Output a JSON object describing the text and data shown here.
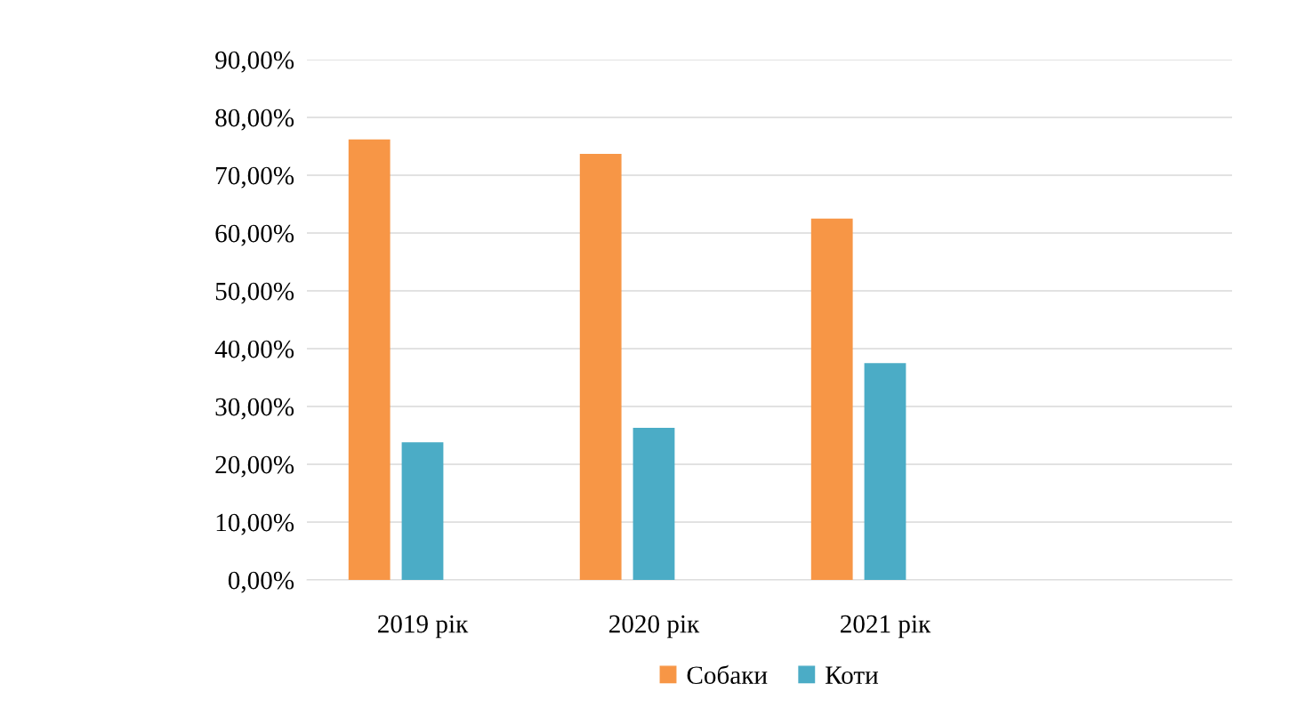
{
  "chart_data": {
    "type": "bar",
    "categories": [
      "2019 рік",
      "2020 рік",
      "2021 рік",
      null
    ],
    "series": [
      {
        "name": "Собаки",
        "color": "#f79646",
        "values": [
          76.2,
          73.7,
          62.5,
          null
        ]
      },
      {
        "name": "Коти",
        "color": "#4bacc6",
        "values": [
          23.8,
          26.3,
          37.5,
          null
        ]
      }
    ],
    "ylim": [
      0,
      90
    ],
    "yticks": [
      {
        "value": 0,
        "label": "0,00%"
      },
      {
        "value": 10,
        "label": "10,00%"
      },
      {
        "value": 20,
        "label": "20,00%"
      },
      {
        "value": 30,
        "label": "30,00%"
      },
      {
        "value": 40,
        "label": "40,00%"
      },
      {
        "value": 50,
        "label": "50,00%"
      },
      {
        "value": 60,
        "label": "60,00%"
      },
      {
        "value": 70,
        "label": "70,00%"
      },
      {
        "value": 80,
        "label": "80,00%"
      },
      {
        "value": 90,
        "label": "90,00%"
      }
    ],
    "grid": "y",
    "legend": "bottom"
  }
}
